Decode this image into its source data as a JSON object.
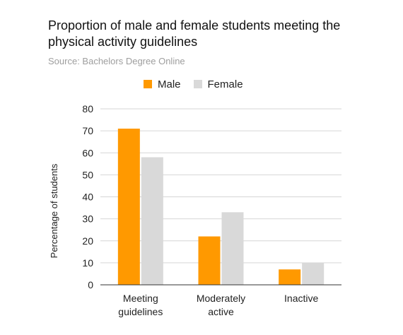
{
  "title": "Proportion of male and female students meeting the physical activity guidelines",
  "subtitle": "Source: Bachelors Degree Online",
  "chart_data": {
    "type": "bar",
    "title": "Proportion of male and female students meeting the physical activity guidelines",
    "subtitle": "Source: Bachelors Degree Online",
    "categories": [
      [
        "Meeting",
        "guidelines"
      ],
      [
        "Moderately",
        "active"
      ],
      [
        "Inactive"
      ]
    ],
    "series": [
      {
        "name": "Male",
        "color": "#ff9900",
        "values": [
          71,
          22,
          7
        ]
      },
      {
        "name": "Female",
        "color": "#d9d9d9",
        "values": [
          58,
          33,
          10
        ]
      }
    ],
    "xlabel": "",
    "ylabel": "Percentage of students",
    "ylim": [
      0,
      80
    ],
    "yticks": [
      0,
      10,
      20,
      30,
      40,
      50,
      60,
      70,
      80
    ],
    "grid": true,
    "legend_position": "top"
  }
}
